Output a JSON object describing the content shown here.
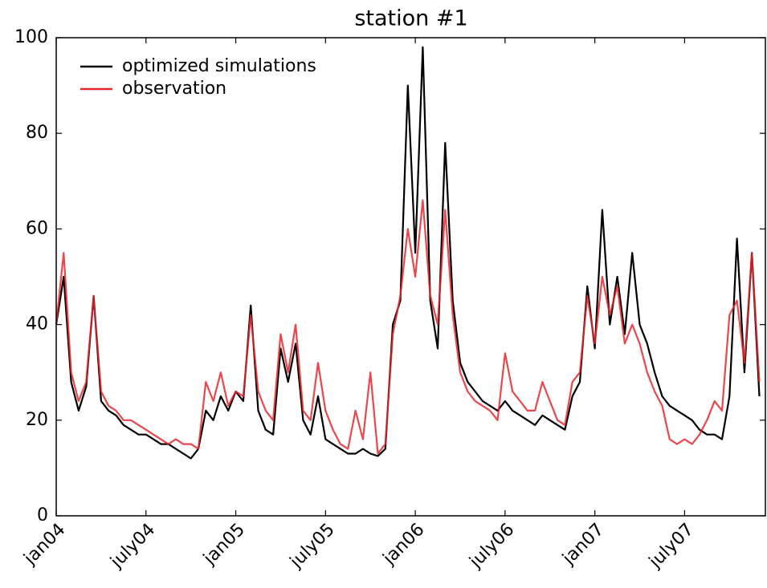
{
  "chart_data": {
    "type": "line",
    "title": "station #1",
    "x": [
      0,
      0.5,
      1,
      1.5,
      2,
      2.5,
      3,
      3.5,
      4,
      4.5,
      5,
      5.5,
      6,
      6.5,
      7,
      7.5,
      8,
      8.5,
      9,
      9.5,
      10,
      10.5,
      11,
      11.5,
      12,
      12.5,
      13,
      13.5,
      14,
      14.5,
      15,
      15.5,
      16,
      16.5,
      17,
      17.5,
      18,
      18.5,
      19,
      19.5,
      20,
      20.5,
      21,
      21.5,
      22,
      22.5,
      23,
      23.5,
      24,
      24.5,
      25,
      25.5,
      26,
      26.5,
      27,
      27.5,
      28,
      28.5,
      29,
      29.5,
      30,
      30.5,
      31,
      31.5,
      32,
      32.5,
      33,
      33.5,
      34,
      34.5,
      35,
      35.5,
      36,
      36.5,
      37,
      37.5,
      38,
      38.5,
      39,
      39.5,
      40,
      40.5,
      41,
      41.5,
      42,
      42.5,
      43,
      43.5,
      44,
      44.5,
      45,
      45.5,
      46,
      46.5,
      47
    ],
    "series": [
      {
        "name": "optimized simulations",
        "color": "#000000",
        "values": [
          40,
          50,
          28,
          22,
          27,
          46,
          24,
          22,
          21,
          19,
          18,
          17,
          17,
          16,
          15,
          15,
          14,
          13,
          12,
          14,
          22,
          20,
          25,
          22,
          26,
          24,
          44,
          22,
          18,
          17,
          35,
          28,
          36,
          20,
          17,
          25,
          16,
          15,
          14,
          13,
          13,
          14,
          13,
          12.5,
          14,
          40,
          45,
          90,
          55,
          98,
          45,
          35,
          78,
          45,
          32,
          28,
          26,
          24,
          23,
          22,
          24,
          22,
          21,
          20,
          19,
          21,
          20,
          19,
          18,
          25,
          28,
          48,
          35,
          64,
          40,
          50,
          38,
          55,
          40,
          36,
          30,
          25,
          23,
          22,
          21,
          20,
          18,
          17,
          17,
          16,
          25,
          58,
          30,
          55,
          25
        ]
      },
      {
        "name": "observation",
        "color": "#e8262b",
        "values": [
          40,
          55,
          30,
          24,
          28,
          46,
          26,
          23,
          22,
          20,
          20,
          19,
          18,
          17,
          16,
          15,
          16,
          15,
          15,
          14,
          28,
          24,
          30,
          23,
          26,
          25,
          42,
          26,
          22,
          20,
          38,
          30,
          40,
          22,
          20,
          32,
          22,
          18,
          15,
          14,
          22,
          16,
          30,
          13,
          15,
          38,
          46,
          60,
          50,
          66,
          46,
          40,
          64,
          42,
          30,
          26,
          24,
          23,
          22,
          20,
          34,
          26,
          24,
          22,
          22,
          28,
          24,
          20,
          19,
          28,
          30,
          46,
          36,
          50,
          42,
          48,
          36,
          40,
          36,
          30,
          26,
          23,
          16,
          15,
          16,
          15,
          17,
          20,
          24,
          22,
          42,
          45,
          32,
          55,
          28
        ]
      }
    ],
    "xlim": [
      0,
      47.4
    ],
    "xticks": [
      {
        "value": 0,
        "label": "jan04"
      },
      {
        "value": 6,
        "label": "july04"
      },
      {
        "value": 12,
        "label": "jan05"
      },
      {
        "value": 18,
        "label": "july05"
      },
      {
        "value": 24,
        "label": "jan06"
      },
      {
        "value": 30,
        "label": "july06"
      },
      {
        "value": 36,
        "label": "jan07"
      },
      {
        "value": 42,
        "label": "july07"
      }
    ],
    "ylim": [
      0,
      100
    ],
    "yticks": [
      0,
      20,
      40,
      60,
      80,
      100
    ],
    "legend": "upper left"
  }
}
